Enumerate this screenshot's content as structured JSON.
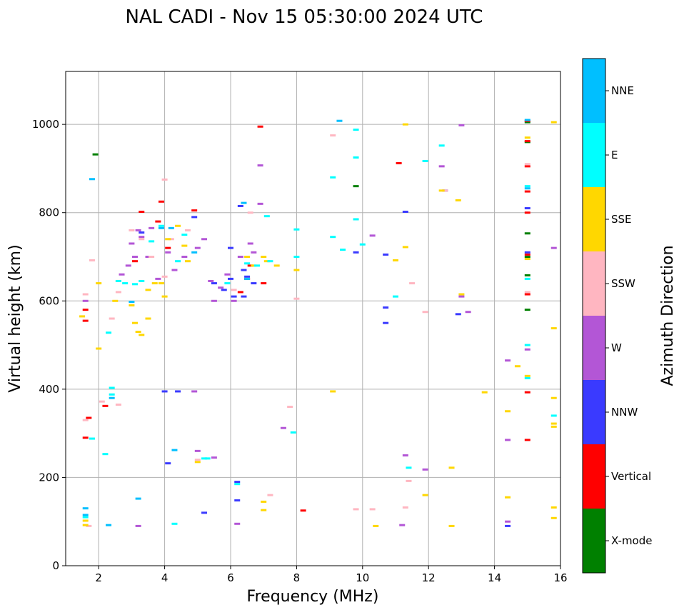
{
  "chart_data": {
    "type": "scatter",
    "title": "NAL CADI - Nov 15 05:30:00 2024 UTC",
    "xlabel": "Frequency (MHz)",
    "ylabel": "Virtual height (km)",
    "xlim": [
      1,
      16
    ],
    "ylim": [
      0,
      1120
    ],
    "xticks": [
      2,
      4,
      6,
      8,
      10,
      12,
      14,
      16
    ],
    "yticks": [
      0,
      200,
      400,
      600,
      800,
      1000
    ],
    "grid": true,
    "colorbar": {
      "label": "Azimuth Direction",
      "categories": [
        {
          "name": "X-mode",
          "color": "#008000"
        },
        {
          "name": "Vertical",
          "color": "#ff0000"
        },
        {
          "name": "NNW",
          "color": "#3a3aff"
        },
        {
          "name": "W",
          "color": "#b356d6"
        },
        {
          "name": "SSW",
          "color": "#ffb6c1"
        },
        {
          "name": "SSE",
          "color": "#ffd700"
        },
        {
          "name": "E",
          "color": "#00ffff"
        },
        {
          "name": "NNE",
          "color": "#00bfff"
        }
      ]
    },
    "series": [
      {
        "name": "X-mode",
        "points": [
          [
            1.9,
            932
          ],
          [
            9.8,
            860
          ],
          [
            15.0,
            753
          ],
          [
            15.0,
            700
          ],
          [
            15.0,
            658
          ],
          [
            15.0,
            580
          ],
          [
            15.0,
            960
          ],
          [
            15.0,
            1005
          ]
        ]
      },
      {
        "name": "Vertical",
        "points": [
          [
            1.6,
            555
          ],
          [
            1.6,
            580
          ],
          [
            1.7,
            335
          ],
          [
            1.6,
            290
          ],
          [
            2.2,
            362
          ],
          [
            3.1,
            690
          ],
          [
            3.3,
            802
          ],
          [
            3.8,
            780
          ],
          [
            3.9,
            825
          ],
          [
            4.1,
            720
          ],
          [
            4.9,
            805
          ],
          [
            6.3,
            620
          ],
          [
            6.5,
            650
          ],
          [
            6.6,
            680
          ],
          [
            6.9,
            995
          ],
          [
            7.0,
            640
          ],
          [
            8.2,
            125
          ],
          [
            11.1,
            912
          ],
          [
            15.0,
            1008
          ],
          [
            15.0,
            962
          ],
          [
            15.0,
            905
          ],
          [
            15.0,
            848
          ],
          [
            15.0,
            800
          ],
          [
            15.0,
            705
          ],
          [
            15.0,
            615
          ],
          [
            15.0,
            393
          ],
          [
            15.0,
            285
          ]
        ]
      },
      {
        "name": "NNW",
        "points": [
          [
            3.3,
            755
          ],
          [
            4.0,
            395
          ],
          [
            4.1,
            232
          ],
          [
            4.4,
            395
          ],
          [
            4.9,
            790
          ],
          [
            5.2,
            120
          ],
          [
            5.5,
            640
          ],
          [
            5.8,
            625
          ],
          [
            6.0,
            720
          ],
          [
            6.0,
            650
          ],
          [
            6.1,
            610
          ],
          [
            6.2,
            190
          ],
          [
            6.2,
            148
          ],
          [
            6.3,
            815
          ],
          [
            6.4,
            670
          ],
          [
            6.5,
            655
          ],
          [
            6.7,
            640
          ],
          [
            6.4,
            610
          ],
          [
            9.8,
            710
          ],
          [
            10.7,
            705
          ],
          [
            10.7,
            585
          ],
          [
            10.7,
            550
          ],
          [
            11.3,
            802
          ],
          [
            12.5,
            850
          ],
          [
            12.9,
            570
          ],
          [
            14.4,
            90
          ],
          [
            15.0,
            810
          ],
          [
            15.0,
            710
          ]
        ]
      },
      {
        "name": "W",
        "points": [
          [
            1.6,
            600
          ],
          [
            2.7,
            660
          ],
          [
            2.9,
            680
          ],
          [
            3.0,
            730
          ],
          [
            3.1,
            700
          ],
          [
            3.2,
            760
          ],
          [
            3.3,
            745
          ],
          [
            3.5,
            700
          ],
          [
            3.6,
            765
          ],
          [
            3.8,
            650
          ],
          [
            4.1,
            710
          ],
          [
            4.3,
            670
          ],
          [
            4.6,
            700
          ],
          [
            5.0,
            720
          ],
          [
            5.2,
            740
          ],
          [
            5.4,
            645
          ],
          [
            5.5,
            600
          ],
          [
            5.7,
            630
          ],
          [
            5.9,
            660
          ],
          [
            6.1,
            600
          ],
          [
            6.3,
            700
          ],
          [
            6.6,
            730
          ],
          [
            6.7,
            710
          ],
          [
            6.9,
            820
          ],
          [
            6.9,
            907
          ],
          [
            7.6,
            312
          ],
          [
            10.3,
            748
          ],
          [
            11.2,
            92
          ],
          [
            11.3,
            250
          ],
          [
            11.9,
            218
          ],
          [
            12.4,
            905
          ],
          [
            13.0,
            998
          ],
          [
            13.0,
            610
          ],
          [
            13.2,
            575
          ],
          [
            14.4,
            465
          ],
          [
            14.4,
            285
          ],
          [
            14.4,
            100
          ],
          [
            15.0,
            490
          ],
          [
            15.8,
            720
          ],
          [
            3.2,
            90
          ],
          [
            6.2,
            95
          ],
          [
            4.9,
            395
          ],
          [
            5.0,
            260
          ],
          [
            5.5,
            245
          ]
        ]
      },
      {
        "name": "SSW",
        "points": [
          [
            1.6,
            330
          ],
          [
            1.6,
            615
          ],
          [
            1.8,
            692
          ],
          [
            1.7,
            90
          ],
          [
            2.1,
            372
          ],
          [
            2.4,
            560
          ],
          [
            2.6,
            620
          ],
          [
            2.6,
            365
          ],
          [
            3.0,
            760
          ],
          [
            3.3,
            740
          ],
          [
            3.6,
            700
          ],
          [
            4.0,
            875
          ],
          [
            4.0,
            655
          ],
          [
            4.2,
            740
          ],
          [
            4.7,
            760
          ],
          [
            5.0,
            240
          ],
          [
            6.1,
            625
          ],
          [
            6.6,
            800
          ],
          [
            7.2,
            160
          ],
          [
            7.8,
            360
          ],
          [
            8.0,
            605
          ],
          [
            9.1,
            975
          ],
          [
            9.8,
            128
          ],
          [
            10.3,
            128
          ],
          [
            11.3,
            132
          ],
          [
            11.4,
            192
          ],
          [
            11.5,
            640
          ],
          [
            11.9,
            575
          ],
          [
            12.5,
            850
          ],
          [
            15.0,
            910
          ],
          [
            15.0,
            620
          ]
        ]
      },
      {
        "name": "SSE",
        "points": [
          [
            1.5,
            565
          ],
          [
            1.6,
            102
          ],
          [
            1.6,
            92
          ],
          [
            2.0,
            492
          ],
          [
            2.0,
            640
          ],
          [
            2.5,
            600
          ],
          [
            2.6,
            645
          ],
          [
            3.0,
            590
          ],
          [
            3.1,
            550
          ],
          [
            3.2,
            530
          ],
          [
            3.3,
            523
          ],
          [
            3.5,
            625
          ],
          [
            3.5,
            560
          ],
          [
            3.7,
            640
          ],
          [
            3.9,
            640
          ],
          [
            4.0,
            610
          ],
          [
            4.1,
            740
          ],
          [
            4.4,
            770
          ],
          [
            4.6,
            725
          ],
          [
            4.7,
            690
          ],
          [
            5.0,
            235
          ],
          [
            6.5,
            700
          ],
          [
            6.7,
            680
          ],
          [
            7.0,
            700
          ],
          [
            7.1,
            690
          ],
          [
            7.0,
            145
          ],
          [
            7.0,
            126
          ],
          [
            7.4,
            680
          ],
          [
            8.0,
            670
          ],
          [
            9.1,
            395
          ],
          [
            10.4,
            90
          ],
          [
            11.0,
            692
          ],
          [
            11.3,
            722
          ],
          [
            11.3,
            1000
          ],
          [
            11.9,
            160
          ],
          [
            12.4,
            850
          ],
          [
            12.7,
            222
          ],
          [
            12.7,
            90
          ],
          [
            12.9,
            828
          ],
          [
            13.0,
            615
          ],
          [
            13.7,
            393
          ],
          [
            14.4,
            350
          ],
          [
            14.4,
            155
          ],
          [
            14.7,
            452
          ],
          [
            15.0,
            970
          ],
          [
            15.0,
            695
          ],
          [
            15.0,
            430
          ],
          [
            15.8,
            1005
          ],
          [
            15.8,
            538
          ],
          [
            15.8,
            380
          ],
          [
            15.8,
            322
          ],
          [
            15.8,
            315
          ],
          [
            15.8,
            132
          ],
          [
            15.8,
            108
          ]
        ]
      },
      {
        "name": "E",
        "points": [
          [
            1.6,
            110
          ],
          [
            1.8,
            288
          ],
          [
            2.2,
            253
          ],
          [
            2.3,
            528
          ],
          [
            2.4,
            388
          ],
          [
            2.4,
            403
          ],
          [
            2.6,
            645
          ],
          [
            2.8,
            640
          ],
          [
            3.1,
            638
          ],
          [
            3.3,
            645
          ],
          [
            3.6,
            735
          ],
          [
            3.9,
            770
          ],
          [
            4.3,
            95
          ],
          [
            4.4,
            690
          ],
          [
            4.6,
            750
          ],
          [
            5.2,
            243
          ],
          [
            5.3,
            243
          ],
          [
            5.9,
            640
          ],
          [
            6.2,
            185
          ],
          [
            6.5,
            685
          ],
          [
            6.8,
            680
          ],
          [
            7.1,
            792
          ],
          [
            7.2,
            690
          ],
          [
            7.9,
            302
          ],
          [
            8.0,
            700
          ],
          [
            8.0,
            762
          ],
          [
            9.1,
            880
          ],
          [
            9.1,
            745
          ],
          [
            9.4,
            716
          ],
          [
            9.8,
            988
          ],
          [
            9.8,
            925
          ],
          [
            9.8,
            785
          ],
          [
            10.0,
            728
          ],
          [
            11.0,
            610
          ],
          [
            11.4,
            222
          ],
          [
            11.9,
            917
          ],
          [
            12.4,
            952
          ],
          [
            15.0,
            860
          ],
          [
            15.0,
            650
          ],
          [
            15.0,
            500
          ],
          [
            15.0,
            425
          ],
          [
            15.8,
            340
          ]
        ]
      },
      {
        "name": "NNE",
        "points": [
          [
            1.6,
            130
          ],
          [
            1.6,
            115
          ],
          [
            1.8,
            876
          ],
          [
            2.3,
            92
          ],
          [
            2.4,
            380
          ],
          [
            3.0,
            598
          ],
          [
            3.2,
            152
          ],
          [
            3.9,
            765
          ],
          [
            4.2,
            765
          ],
          [
            4.3,
            262
          ],
          [
            4.9,
            710
          ],
          [
            6.4,
            822
          ],
          [
            6.5,
            650
          ],
          [
            9.3,
            1008
          ],
          [
            15.0,
            1010
          ],
          [
            15.0,
            855
          ]
        ]
      }
    ]
  }
}
